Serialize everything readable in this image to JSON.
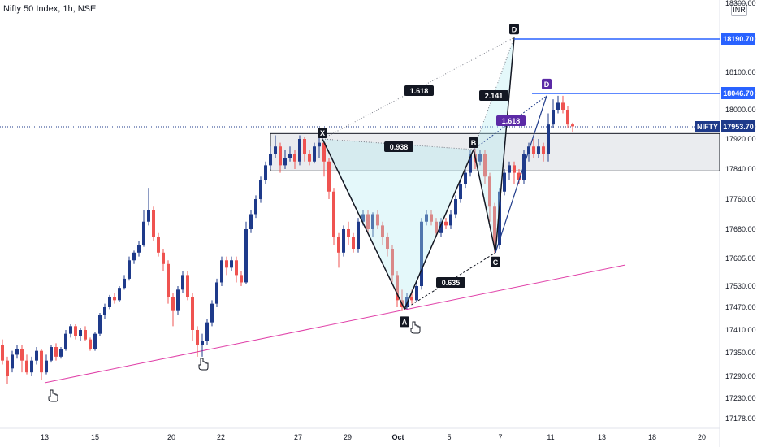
{
  "header": {
    "title": "Nifty 50 Index, 1h, NSE"
  },
  "currency": "INR",
  "chart_data": {
    "type": "candlestick",
    "title": "Nifty 50 Index, 1h, NSE",
    "symbol": "NIFTY",
    "y_ticks": [
      "18300.00",
      "18190.70",
      "18100.00",
      "18046.70",
      "18000.00",
      "17953.70",
      "17920.00",
      "17840.00",
      "17760.00",
      "17680.00",
      "17605.00",
      "17530.00",
      "17470.00",
      "17410.00",
      "17350.00",
      "17290.00",
      "17230.00",
      "17178.00"
    ],
    "x_ticks": [
      "13",
      "15",
      "20",
      "22",
      "27",
      "29",
      "Oct",
      "5",
      "7",
      "11",
      "13",
      "18",
      "20"
    ],
    "ylim": [
      17160,
      18310
    ],
    "price_labels": [
      {
        "text": "18190.70",
        "value": 18190.7,
        "color": "#2962ff"
      },
      {
        "text": "18046.70",
        "value": 18046.7,
        "color": "#2962ff"
      },
      {
        "text": "17953.70",
        "value": 17953.7,
        "color": "#1e3a8a"
      }
    ],
    "symbol_tag": "NIFTY",
    "pattern_points": [
      {
        "label": "X",
        "value": 17920
      },
      {
        "label": "A",
        "value": 17465
      },
      {
        "label": "B",
        "value": 17892
      },
      {
        "label": "C",
        "value": 17620
      },
      {
        "label": "D",
        "value": 18195
      }
    ],
    "second_d_label": "D",
    "ratios": [
      "1.618",
      "0.938",
      "0.635",
      "2.141",
      "1.618"
    ],
    "zone": {
      "from": 17835,
      "to": 17935
    }
  }
}
